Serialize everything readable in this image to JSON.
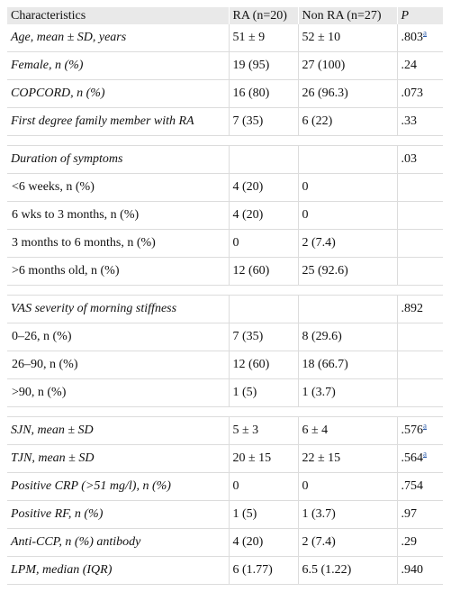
{
  "headers": {
    "characteristics": "Characteristics",
    "ra": "RA (n=20)",
    "non_ra": "Non RA (n=27)",
    "p": "P"
  },
  "rows": [
    {
      "label": "Age, mean ± SD, years",
      "ra": "51 ± 9",
      "nonra": "52 ± 10",
      "p": ".803",
      "sup": "a"
    },
    {
      "label": "Female, n (%)",
      "ra": "19 (95)",
      "nonra": "27 (100)",
      "p": ".24"
    },
    {
      "label": "COPCORD, n (%)",
      "ra": "16 (80)",
      "nonra": "26 (96.3)",
      "p": ".073"
    },
    {
      "label": "First degree family member with RA",
      "ra": "7 (35)",
      "nonra": "6 (22)",
      "p": ".33"
    },
    {
      "label": "Duration of symptoms",
      "ra": "",
      "nonra": "",
      "p": ".03"
    },
    {
      "label": "<6 weeks, n (%)",
      "ra": "4 (20)",
      "nonra": "0",
      "p": ""
    },
    {
      "label": "6 wks to 3 months, n (%)",
      "ra": "4 (20)",
      "nonra": "0",
      "p": ""
    },
    {
      "label": "3 months to 6 months, n (%)",
      "ra": "0",
      "nonra": "2 (7.4)",
      "p": ""
    },
    {
      "label": ">6 months old, n (%)",
      "ra": "12 (60)",
      "nonra": "25 (92.6)",
      "p": ""
    },
    {
      "label": "VAS severity of morning stiffness",
      "ra": "",
      "nonra": "",
      "p": ".892"
    },
    {
      "label": "0–26, n (%)",
      "ra": "7 (35)",
      "nonra": "8 (29.6)",
      "p": ""
    },
    {
      "label": "26–90, n (%)",
      "ra": "12 (60)",
      "nonra": "18 (66.7)",
      "p": ""
    },
    {
      "label": ">90, n (%)",
      "ra": "1 (5)",
      "nonra": "1 (3.7)",
      "p": ""
    },
    {
      "label": "SJN, mean ± SD",
      "ra": "5 ± 3",
      "nonra": "6 ± 4",
      "p": ".576",
      "sup": "a"
    },
    {
      "label": "TJN, mean ± SD",
      "ra": "20 ± 15",
      "nonra": "22 ± 15",
      "p": ".564",
      "sup": "a"
    },
    {
      "label": "Positive CRP (>51 mg/l), n (%)",
      "ra": "0",
      "nonra": "0",
      "p": ".754"
    },
    {
      "label": "Positive RF, n (%)",
      "ra": "1 (5)",
      "nonra": "1 (3.7)",
      "p": ".97"
    },
    {
      "label": "Anti-CCP, n (%) antibody",
      "ra": "4 (20)",
      "nonra": "2 (7.4)",
      "p": ".29"
    },
    {
      "label": "LPM, median (IQR)",
      "ra": "6 (1.77)",
      "nonra": "6.5 (1.22)",
      "p": ".940"
    }
  ]
}
